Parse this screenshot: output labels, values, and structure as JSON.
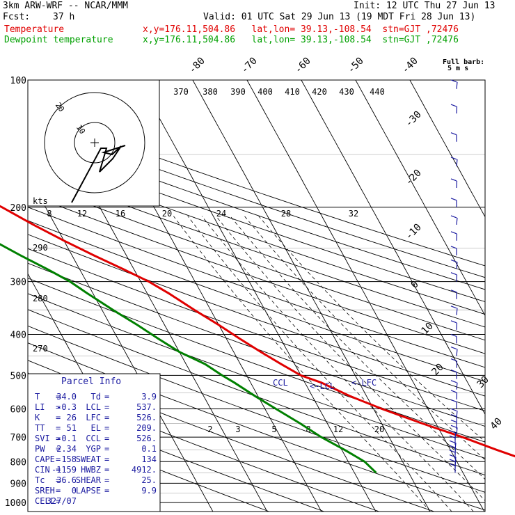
{
  "header": {
    "model": "3km ARW-WRF -- NCAR/MMM",
    "init": "Init: 12 UTC Thu 27 Jun 13",
    "fcst_label": "Fcst:",
    "fcst_value": "37 h",
    "valid": "Valid: 01 UTC Sat 29 Jun 13 (19 MDT Fri 28 Jun 13)",
    "temp_label": "Temperature",
    "temp_info": "x,y=176.11,504.86   lat,lon= 39.13,-108.54  stn=GJT ,72476",
    "dew_label": "Dewpoint temperature",
    "dew_info": "x,y=176.11,504.86   lat,lon= 39.13,-108.54  stn=GJT ,72476"
  },
  "wind_title": "Full barb:",
  "wind_units": "5 m s",
  "colors": {
    "temperature": "#e00000",
    "dewpoint": "#008000",
    "wind": "#1a1aa0",
    "grid": "#000000"
  },
  "chart_data": {
    "type": "line",
    "chart_kind": "skew-T log-p diagram",
    "y_scale": "log pressure (hPa)",
    "pressure_ticks": [
      "100",
      "200",
      "300",
      "400",
      "500",
      "600",
      "700",
      "800",
      "900",
      "1000"
    ],
    "temp_ticks": [
      "-80",
      "-70",
      "-60",
      "-50",
      "-40",
      "-30",
      "-20",
      "-10",
      "0",
      "10",
      "20",
      "30",
      "40"
    ],
    "theta_ticks": [
      "370",
      "380",
      "390",
      "400",
      "410",
      "420",
      "430",
      "440"
    ],
    "mix_top_ticks": [
      "8",
      "12",
      "16",
      "20",
      "24",
      "28",
      "32"
    ],
    "mix_bottom_ticks": [
      "2",
      "3",
      "5",
      "8",
      "12",
      "20"
    ],
    "theta_left_ticks": [
      "290",
      "280",
      "270"
    ],
    "hodo_labels": [
      "20",
      "10",
      "kts"
    ],
    "series": [
      {
        "name": "Temperature",
        "color": "#e00000",
        "points": [
          [
            850,
            37.0
          ],
          [
            800,
            33.5
          ],
          [
            750,
            28.5
          ],
          [
            700,
            23.5
          ],
          [
            650,
            17.5
          ],
          [
            600,
            11.5
          ],
          [
            560,
            7.0
          ],
          [
            520,
            3.0
          ],
          [
            500,
            0.0
          ],
          [
            470,
            -2.5
          ],
          [
            440,
            -5.0
          ],
          [
            410,
            -7.5
          ],
          [
            380,
            -10.0
          ],
          [
            350,
            -13.0
          ],
          [
            320,
            -16.0
          ],
          [
            300,
            -18.5
          ],
          [
            280,
            -22.0
          ],
          [
            260,
            -26.0
          ],
          [
            240,
            -30.0
          ],
          [
            220,
            -34.0
          ],
          [
            200,
            -38.0
          ],
          [
            180,
            -43.0
          ],
          [
            160,
            -48.0
          ],
          [
            140,
            -54.0
          ],
          [
            125,
            -58.0
          ],
          [
            110,
            -60.0
          ],
          [
            100,
            -61.0
          ]
        ]
      },
      {
        "name": "Dewpoint temperature",
        "color": "#008000",
        "points": [
          [
            850,
            4.0
          ],
          [
            800,
            3.0
          ],
          [
            750,
            0.5
          ],
          [
            700,
            -2.5
          ],
          [
            650,
            -5.0
          ],
          [
            600,
            -8.0
          ],
          [
            560,
            -10.5
          ],
          [
            520,
            -13.0
          ],
          [
            500,
            -14.5
          ],
          [
            470,
            -16.5
          ],
          [
            440,
            -20.0
          ],
          [
            410,
            -22.5
          ],
          [
            380,
            -25.0
          ],
          [
            350,
            -28.0
          ],
          [
            320,
            -31.0
          ],
          [
            300,
            -33.0
          ],
          [
            280,
            -36.0
          ],
          [
            260,
            -39.5
          ],
          [
            240,
            -43.0
          ],
          [
            220,
            -48.0
          ],
          [
            200,
            -52.0
          ],
          [
            180,
            -57.0
          ],
          [
            160,
            -62.0
          ],
          [
            140,
            -66.0
          ],
          [
            125,
            -69.0
          ],
          [
            110,
            -72.0
          ],
          [
            100,
            -73.0
          ]
        ]
      }
    ],
    "markers": [
      "CCL",
      "LCL",
      "LFC"
    ],
    "wind_barbs_hpa": [
      850,
      830,
      810,
      790,
      770,
      750,
      730,
      710,
      690,
      670,
      650,
      630,
      600,
      570,
      540,
      510,
      480,
      450,
      420,
      390,
      360,
      330,
      300,
      280,
      260,
      240,
      220,
      200,
      180,
      160,
      140,
      120,
      105
    ]
  },
  "parcel": {
    "title": "Parcel Info",
    "rows": [
      [
        "T",
        "34.0",
        "Td",
        "3.9"
      ],
      [
        "LI",
        "-0.3",
        "LCL",
        "537."
      ],
      [
        "K",
        "26",
        "LFC",
        "526."
      ],
      [
        "TT",
        "51",
        "EL",
        "209."
      ],
      [
        "SVI",
        "-0.1",
        "CCL",
        "526."
      ],
      [
        "PW",
        "2.34",
        "YGP",
        "0.1"
      ],
      [
        "CAPE",
        "158",
        "SWEAT",
        "134"
      ],
      [
        "CIN",
        "-1159",
        "HWBZ",
        "4912."
      ],
      [
        "Tc",
        "36.6",
        "SHEAR",
        "25."
      ],
      [
        "SREH",
        "0",
        "LAPSE",
        "9.9"
      ],
      [
        "CELL",
        "327/07",
        "",
        ""
      ]
    ]
  }
}
